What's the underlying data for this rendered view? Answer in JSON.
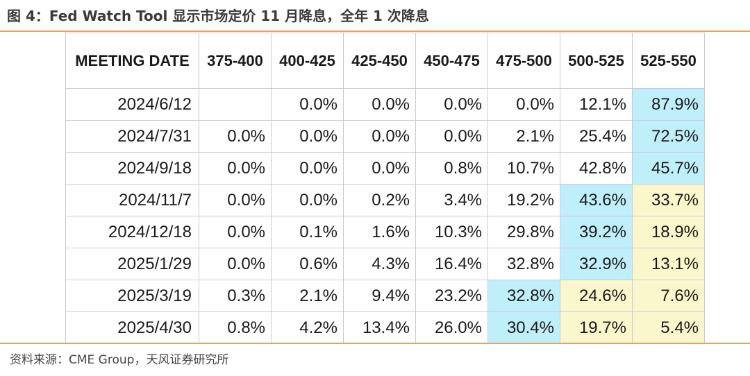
{
  "figure": {
    "title": "图 4：Fed Watch Tool 显示市场定价 11 月降息，全年 1 次降息",
    "source": "资料来源：CME Group，天风证券研究所"
  },
  "table": {
    "headers": [
      "MEETING DATE",
      "375-400",
      "400-425",
      "425-450",
      "450-475",
      "475-500",
      "500-525",
      "525-550"
    ],
    "highlight_colors": {
      "blue": "#bfeffb",
      "yellow": "#fbf7cc"
    },
    "rows": [
      {
        "date": "2024/6/12",
        "values": [
          "",
          "0.0%",
          "0.0%",
          "0.0%",
          "0.0%",
          "12.1%",
          "87.9%"
        ],
        "highlights": [
          "none",
          "none",
          "none",
          "none",
          "none",
          "none",
          "blue"
        ]
      },
      {
        "date": "2024/7/31",
        "values": [
          "0.0%",
          "0.0%",
          "0.0%",
          "0.0%",
          "2.1%",
          "25.4%",
          "72.5%"
        ],
        "highlights": [
          "none",
          "none",
          "none",
          "none",
          "none",
          "none",
          "blue"
        ]
      },
      {
        "date": "2024/9/18",
        "values": [
          "0.0%",
          "0.0%",
          "0.0%",
          "0.8%",
          "10.7%",
          "42.8%",
          "45.7%"
        ],
        "highlights": [
          "none",
          "none",
          "none",
          "none",
          "none",
          "none",
          "blue"
        ]
      },
      {
        "date": "2024/11/7",
        "values": [
          "0.0%",
          "0.0%",
          "0.2%",
          "3.4%",
          "19.2%",
          "43.6%",
          "33.7%"
        ],
        "highlights": [
          "none",
          "none",
          "none",
          "none",
          "none",
          "blue",
          "yellow"
        ]
      },
      {
        "date": "2024/12/18",
        "values": [
          "0.0%",
          "0.1%",
          "1.6%",
          "10.3%",
          "29.8%",
          "39.2%",
          "18.9%"
        ],
        "highlights": [
          "none",
          "none",
          "none",
          "none",
          "none",
          "blue",
          "yellow"
        ]
      },
      {
        "date": "2025/1/29",
        "values": [
          "0.0%",
          "0.6%",
          "4.3%",
          "16.4%",
          "32.8%",
          "32.9%",
          "13.1%"
        ],
        "highlights": [
          "none",
          "none",
          "none",
          "none",
          "none",
          "blue",
          "yellow"
        ]
      },
      {
        "date": "2025/3/19",
        "values": [
          "0.3%",
          "2.1%",
          "9.4%",
          "23.2%",
          "32.8%",
          "24.6%",
          "7.6%"
        ],
        "highlights": [
          "none",
          "none",
          "none",
          "none",
          "blue",
          "yellow",
          "yellow"
        ]
      },
      {
        "date": "2025/4/30",
        "values": [
          "0.8%",
          "4.2%",
          "13.4%",
          "26.0%",
          "30.4%",
          "19.7%",
          "5.4%"
        ],
        "highlights": [
          "none",
          "none",
          "none",
          "none",
          "blue",
          "yellow",
          "yellow"
        ]
      }
    ]
  }
}
